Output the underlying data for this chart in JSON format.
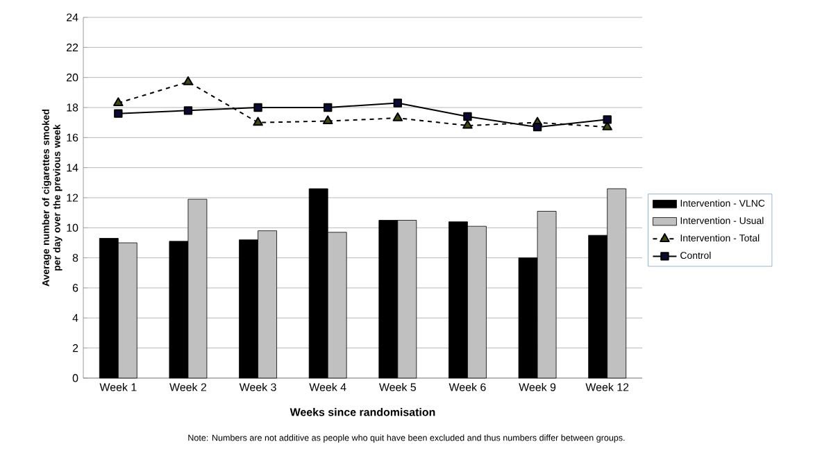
{
  "chart_data": {
    "type": "bar",
    "xlabel": "Weeks since randomisation",
    "ylabel": "Average number of cigarettes smoked per day over the previous week",
    "categories": [
      "Week 1",
      "Week 2",
      "Week 3",
      "Week 4",
      "Week 5",
      "Week 6",
      "Week 9",
      "Week 12"
    ],
    "series": [
      {
        "name": "Intervention - VLNC",
        "color": "#000000",
        "values": [
          9.3,
          9.1,
          9.2,
          12.6,
          10.5,
          10.4,
          8.0,
          9.5
        ]
      },
      {
        "name": "Intervention - Usual",
        "color": "#c0c0c0",
        "values": [
          9.0,
          11.9,
          9.8,
          9.7,
          10.5,
          10.1,
          11.1,
          12.6
        ]
      },
      {
        "name": "Intervention - Total",
        "type": "line",
        "color": "#000000",
        "marker": "triangle",
        "line_style": "dashed",
        "values": [
          18.3,
          19.7,
          17.0,
          17.1,
          17.3,
          16.8,
          17.0,
          16.7
        ]
      },
      {
        "name": "Control",
        "type": "line",
        "color": "#000000",
        "marker": "square",
        "line_style": "solid",
        "values": [
          17.6,
          17.8,
          18.0,
          18.0,
          18.3,
          17.4,
          16.7,
          17.2
        ]
      }
    ],
    "ylim": [
      0,
      24
    ],
    "yticks": [
      0,
      2,
      4,
      6,
      8,
      10,
      12,
      14,
      16,
      18,
      20,
      22,
      24
    ],
    "grid": "y",
    "legend": "right",
    "annotations": [
      "Note: Numbers are not additive as people who quit have been excluded and thus numbers differ between groups."
    ]
  }
}
